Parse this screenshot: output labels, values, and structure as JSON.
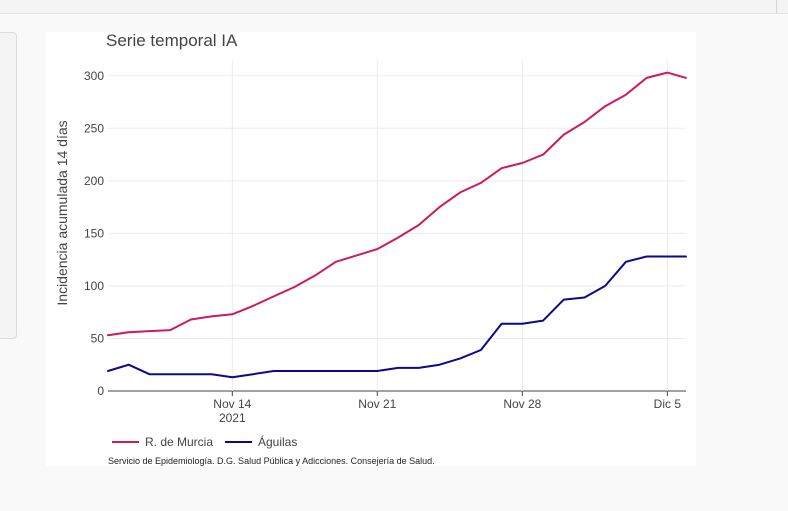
{
  "chart_data": {
    "type": "line",
    "title": "Serie temporal IA",
    "ylabel": "Incidencia acumulada 14 días",
    "xlabel": "",
    "ylim": [
      0,
      315
    ],
    "x_ticks": [
      {
        "label": "Nov 14",
        "sublabel": "2021",
        "day": 14
      },
      {
        "label": "Nov 21",
        "sublabel": "",
        "day": 21
      },
      {
        "label": "Nov 28",
        "sublabel": "",
        "day": 28
      },
      {
        "label": "Dic 5",
        "sublabel": "",
        "day": 35
      }
    ],
    "y_ticks": [
      0,
      50,
      100,
      150,
      200,
      250,
      300
    ],
    "x_start_day": 8,
    "x_end_day": 35.9,
    "grid": true,
    "legend_position": "bottom-left",
    "series": [
      {
        "name": "R. de Murcia",
        "color": "#cc1a62",
        "points": [
          [
            8,
            53
          ],
          [
            9,
            56
          ],
          [
            10,
            57
          ],
          [
            11,
            58
          ],
          [
            12,
            68
          ],
          [
            13,
            71
          ],
          [
            14,
            73
          ],
          [
            15,
            81
          ],
          [
            16,
            90
          ],
          [
            17,
            99
          ],
          [
            18,
            110
          ],
          [
            19,
            123
          ],
          [
            20,
            129
          ],
          [
            21,
            135
          ],
          [
            22,
            146
          ],
          [
            23,
            158
          ],
          [
            24,
            175
          ],
          [
            25,
            189
          ],
          [
            26,
            198
          ],
          [
            27,
            212
          ],
          [
            28,
            217
          ],
          [
            29,
            225
          ],
          [
            30,
            244
          ],
          [
            31,
            256
          ],
          [
            32,
            271
          ],
          [
            33,
            282
          ],
          [
            34,
            298
          ],
          [
            35,
            303
          ],
          [
            35.9,
            298
          ]
        ]
      },
      {
        "name": "Águilas",
        "color": "#0a0a8a",
        "points": [
          [
            8,
            19
          ],
          [
            9,
            25
          ],
          [
            10,
            16
          ],
          [
            11,
            16
          ],
          [
            12,
            16
          ],
          [
            13,
            16
          ],
          [
            14,
            13
          ],
          [
            15,
            16
          ],
          [
            16,
            19
          ],
          [
            17,
            19
          ],
          [
            18,
            19
          ],
          [
            19,
            19
          ],
          [
            20,
            19
          ],
          [
            21,
            19
          ],
          [
            22,
            22
          ],
          [
            23,
            22
          ],
          [
            24,
            25
          ],
          [
            25,
            31
          ],
          [
            26,
            39
          ],
          [
            27,
            64
          ],
          [
            28,
            64
          ],
          [
            29,
            67
          ],
          [
            30,
            87
          ],
          [
            31,
            89
          ],
          [
            32,
            100
          ],
          [
            33,
            123
          ],
          [
            34,
            128
          ],
          [
            35,
            128
          ],
          [
            35.9,
            128
          ]
        ]
      }
    ]
  },
  "footer": {
    "source": "Servicio de Epidemiología. D.G. Salud Pública y Adicciones. Consejería de Salud."
  }
}
